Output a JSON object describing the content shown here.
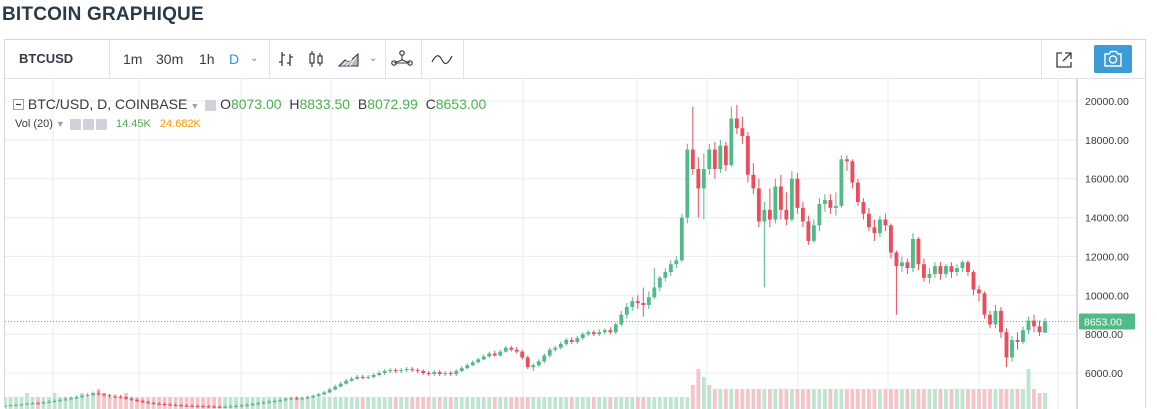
{
  "page": {
    "title": "BITCOIN GRAPHIQUE"
  },
  "toolbar": {
    "symbol": "BTCUSD",
    "intervals": [
      "1m",
      "30m",
      "1h",
      "D"
    ],
    "active_interval": "D",
    "icons": [
      "bar-type-icon",
      "candles-icon",
      "area-icon",
      "indicators-icon",
      "compare-icon",
      "fullscreen-icon",
      "camera-icon"
    ],
    "accent": "#2196f3",
    "camera_color": "#3d9bd6"
  },
  "legend": {
    "series": "BTC/USD, D, COINBASE",
    "o_label": "O",
    "o": "8073.00",
    "h_label": "H",
    "h": "8833.50",
    "l_label": "B",
    "l": "8072.99",
    "c_label": "C",
    "c": "8653.00",
    "vol_label": "Vol (20)",
    "vol_value": "14.45K",
    "vol_ma": "24.682K"
  },
  "chart_data": {
    "type": "candlestick",
    "ylim": [
      4600,
      20500
    ],
    "yticks": [
      "20000.00",
      "18000.00",
      "16000.00",
      "14000.00",
      "12000.00",
      "10000.00",
      "8000.00",
      "6000.00"
    ],
    "last_price_label": "8653.00",
    "last_price": 8653,
    "colors": {
      "up": "#53b987",
      "down": "#eb4d5c",
      "grid": "#e9ecf1"
    },
    "candles": [
      [
        4300,
        4320,
        4310,
        4350,
        4260
      ],
      [
        4320,
        4340,
        4330,
        4380,
        4290
      ],
      [
        4340,
        4360,
        4350,
        4400,
        4310
      ],
      [
        4360,
        4380,
        4370,
        4430,
        4330
      ],
      [
        4380,
        4420,
        4400,
        4480,
        4350
      ],
      [
        4420,
        4440,
        4430,
        4500,
        4390
      ],
      [
        4440,
        4430,
        4450,
        4530,
        4410
      ],
      [
        4430,
        4480,
        4460,
        4560,
        4400
      ],
      [
        4480,
        4520,
        4500,
        4600,
        4450
      ],
      [
        4520,
        4560,
        4540,
        4650,
        4480
      ],
      [
        4560,
        4600,
        4580,
        4700,
        4520
      ],
      [
        4600,
        4650,
        4620,
        4760,
        4560
      ],
      [
        4650,
        4700,
        4680,
        4800,
        4600
      ],
      [
        4700,
        4760,
        4730,
        4850,
        4650
      ],
      [
        4760,
        4820,
        4800,
        4900,
        4700
      ],
      [
        4820,
        4880,
        4850,
        4960,
        4760
      ],
      [
        4880,
        4950,
        4920,
        5050,
        4820
      ],
      [
        4950,
        4900,
        4930,
        5080,
        4850
      ],
      [
        4900,
        4850,
        4870,
        4980,
        4780
      ],
      [
        4850,
        4800,
        4820,
        4930,
        4720
      ],
      [
        4800,
        4780,
        4790,
        4900,
        4700
      ],
      [
        4780,
        4750,
        4760,
        4870,
        4680
      ],
      [
        4750,
        4680,
        4700,
        4820,
        4620
      ],
      [
        4680,
        4620,
        4650,
        4760,
        4560
      ],
      [
        4620,
        4560,
        4590,
        4700,
        4500
      ],
      [
        4560,
        4500,
        4530,
        4640,
        4440
      ],
      [
        4500,
        4460,
        4480,
        4580,
        4400
      ],
      [
        4460,
        4420,
        4440,
        4540,
        4360
      ],
      [
        4420,
        4400,
        4410,
        4500,
        4340
      ],
      [
        4400,
        4380,
        4390,
        4480,
        4320
      ],
      [
        4380,
        4360,
        4370,
        4460,
        4300
      ],
      [
        4360,
        4340,
        4350,
        4440,
        4280
      ],
      [
        4340,
        4320,
        4330,
        4420,
        4260
      ],
      [
        4320,
        4310,
        4315,
        4400,
        4250
      ],
      [
        4310,
        4300,
        4305,
        4390,
        4240
      ],
      [
        4300,
        4290,
        4295,
        4380,
        4230
      ],
      [
        4290,
        4280,
        4285,
        4370,
        4220
      ],
      [
        4280,
        4270,
        4275,
        4360,
        4210
      ],
      [
        4270,
        4260,
        4265,
        4350,
        4200
      ],
      [
        4260,
        4250,
        4255,
        4340,
        4190
      ],
      [
        4250,
        4260,
        4255,
        4340,
        4190
      ],
      [
        4260,
        4280,
        4270,
        4360,
        4200
      ],
      [
        4280,
        4300,
        4290,
        4380,
        4220
      ],
      [
        4300,
        4330,
        4315,
        4410,
        4240
      ],
      [
        4330,
        4360,
        4345,
        4440,
        4270
      ],
      [
        4360,
        4400,
        4380,
        4480,
        4300
      ],
      [
        4400,
        4440,
        4420,
        4520,
        4340
      ],
      [
        4440,
        4480,
        4460,
        4560,
        4380
      ],
      [
        4480,
        4520,
        4500,
        4600,
        4420
      ],
      [
        4520,
        4560,
        4540,
        4640,
        4460
      ],
      [
        4560,
        4600,
        4580,
        4680,
        4500
      ],
      [
        4600,
        4650,
        4620,
        4730,
        4540
      ],
      [
        4650,
        4700,
        4680,
        4780,
        4590
      ],
      [
        4700,
        4650,
        4680,
        4790,
        4600
      ],
      [
        4650,
        4700,
        4670,
        4780,
        4590
      ],
      [
        4700,
        4760,
        4730,
        4840,
        4640
      ],
      [
        4760,
        4820,
        4790,
        4900,
        4700
      ],
      [
        4820,
        4900,
        4860,
        4980,
        4760
      ],
      [
        4900,
        5000,
        4950,
        5080,
        4850
      ],
      [
        5000,
        5150,
        5080,
        5250,
        4950
      ],
      [
        5150,
        5300,
        5230,
        5400,
        5100
      ],
      [
        5300,
        5450,
        5380,
        5550,
        5250
      ],
      [
        5450,
        5600,
        5530,
        5700,
        5400
      ],
      [
        5600,
        5700,
        5650,
        5800,
        5550
      ],
      [
        5700,
        5800,
        5750,
        5900,
        5650
      ],
      [
        5800,
        5750,
        5780,
        5900,
        5680
      ],
      [
        5750,
        5800,
        5780,
        5900,
        5680
      ],
      [
        5800,
        5900,
        5850,
        6000,
        5720
      ],
      [
        5900,
        6000,
        5950,
        6100,
        5820
      ],
      [
        6000,
        6100,
        6050,
        6200,
        5900
      ],
      [
        6100,
        6150,
        6130,
        6250,
        6000
      ],
      [
        6150,
        6100,
        6130,
        6250,
        6000
      ],
      [
        6100,
        6150,
        6120,
        6250,
        6000
      ],
      [
        6150,
        6200,
        6180,
        6300,
        6050
      ],
      [
        6200,
        6150,
        6180,
        6300,
        6050
      ],
      [
        6150,
        6100,
        6120,
        6250,
        5980
      ],
      [
        6100,
        6000,
        6050,
        6200,
        5900
      ],
      [
        6000,
        5950,
        5980,
        6100,
        5850
      ],
      [
        5950,
        6050,
        6000,
        6150,
        5850
      ],
      [
        6050,
        5950,
        6000,
        6150,
        5850
      ],
      [
        5950,
        6000,
        5980,
        6100,
        5850
      ],
      [
        6000,
        5950,
        5970,
        6100,
        5850
      ],
      [
        5950,
        6100,
        6020,
        6200,
        5850
      ],
      [
        6100,
        6250,
        6180,
        6350,
        6050
      ],
      [
        6250,
        6400,
        6320,
        6500,
        6200
      ],
      [
        6400,
        6550,
        6480,
        6650,
        6350
      ],
      [
        6550,
        6700,
        6620,
        6800,
        6500
      ],
      [
        6700,
        6850,
        6780,
        6950,
        6650
      ],
      [
        6850,
        7000,
        6920,
        7100,
        6800
      ],
      [
        7000,
        6900,
        6950,
        7150,
        6850
      ],
      [
        6900,
        7100,
        7000,
        7200,
        6850
      ],
      [
        7100,
        7300,
        7200,
        7400,
        7050
      ],
      [
        7300,
        7200,
        7250,
        7400,
        7100
      ],
      [
        7200,
        7100,
        7150,
        7350,
        7000
      ],
      [
        7100,
        6800,
        6950,
        7200,
        6700
      ],
      [
        6800,
        6300,
        6550,
        6900,
        6200
      ],
      [
        6300,
        6400,
        6350,
        6500,
        6100
      ],
      [
        6400,
        6600,
        6500,
        6700,
        6300
      ],
      [
        6600,
        6900,
        6750,
        7000,
        6500
      ],
      [
        6900,
        7200,
        7050,
        7300,
        6800
      ],
      [
        7200,
        7300,
        7250,
        7400,
        7100
      ],
      [
        7300,
        7500,
        7400,
        7600,
        7200
      ],
      [
        7500,
        7700,
        7600,
        7800,
        7400
      ],
      [
        7700,
        7600,
        7650,
        7850,
        7500
      ],
      [
        7600,
        7800,
        7700,
        7900,
        7500
      ],
      [
        7800,
        8000,
        7900,
        8100,
        7700
      ],
      [
        8000,
        8100,
        8050,
        8200,
        7900
      ],
      [
        8100,
        8000,
        8050,
        8200,
        7900
      ],
      [
        8000,
        8100,
        8050,
        8250,
        7900
      ],
      [
        8100,
        8200,
        8150,
        8300,
        8000
      ],
      [
        8200,
        8100,
        8150,
        8350,
        8000
      ],
      [
        8100,
        8500,
        8300,
        8600,
        8000
      ],
      [
        8500,
        9000,
        8750,
        9200,
        8400
      ],
      [
        9000,
        9400,
        9200,
        9600,
        8800
      ],
      [
        9400,
        9700,
        9550,
        9900,
        9200
      ],
      [
        9700,
        9600,
        9650,
        10000,
        9300
      ],
      [
        9600,
        9500,
        9550,
        10400,
        8900
      ],
      [
        9500,
        9900,
        9700,
        10200,
        9300
      ],
      [
        9900,
        10400,
        10150,
        11400,
        9800
      ],
      [
        10400,
        10900,
        10650,
        11000,
        10200
      ],
      [
        10900,
        11200,
        11050,
        11400,
        10700
      ],
      [
        11200,
        11600,
        11400,
        11800,
        11000
      ],
      [
        11600,
        11800,
        11700,
        12000,
        11400
      ],
      [
        11800,
        14000,
        12900,
        14200,
        11700
      ],
      [
        14000,
        17500,
        15800,
        17800,
        13700
      ],
      [
        17500,
        16500,
        17000,
        19700,
        16200
      ],
      [
        16500,
        15500,
        16000,
        17100,
        14000
      ],
      [
        15500,
        16500,
        16000,
        17300,
        13900
      ],
      [
        16500,
        17500,
        17000,
        17800,
        16200
      ],
      [
        17500,
        16500,
        17000,
        17900,
        16000
      ],
      [
        16500,
        17700,
        17100,
        18000,
        16300
      ],
      [
        17700,
        16700,
        17200,
        17900,
        16400
      ],
      [
        16700,
        19100,
        17900,
        19700,
        16600
      ],
      [
        19100,
        18600,
        18800,
        19800,
        18300
      ],
      [
        18600,
        18200,
        18400,
        19200,
        17800
      ],
      [
        18200,
        16200,
        17200,
        18400,
        15800
      ],
      [
        16200,
        15500,
        15800,
        16800,
        15200
      ],
      [
        15500,
        13800,
        14600,
        16000,
        13500
      ],
      [
        13800,
        14400,
        14100,
        14800,
        10400
      ],
      [
        14400,
        13900,
        14150,
        15500,
        13500
      ],
      [
        13900,
        15600,
        14700,
        16000,
        13700
      ],
      [
        15600,
        14400,
        15000,
        16200,
        13900
      ],
      [
        14400,
        13900,
        14100,
        15300,
        13600
      ],
      [
        13900,
        16000,
        14900,
        16400,
        13800
      ],
      [
        16000,
        14500,
        15200,
        16300,
        14200
      ],
      [
        14500,
        13800,
        14100,
        14800,
        13500
      ],
      [
        13800,
        12800,
        13300,
        14100,
        12600
      ],
      [
        12800,
        13600,
        13200,
        13900,
        12700
      ],
      [
        13600,
        14700,
        14100,
        15000,
        13300
      ],
      [
        14700,
        14900,
        14800,
        15200,
        14300
      ],
      [
        14900,
        14500,
        14700,
        15200,
        14200
      ],
      [
        14500,
        14600,
        14550,
        15300,
        14100
      ],
      [
        14600,
        17000,
        15800,
        17200,
        14500
      ],
      [
        17000,
        16900,
        16950,
        17200,
        16400
      ],
      [
        16900,
        15800,
        16300,
        17000,
        15500
      ],
      [
        15800,
        14800,
        15300,
        16000,
        14600
      ],
      [
        14800,
        14200,
        14500,
        15000,
        13900
      ],
      [
        14200,
        13500,
        13800,
        14500,
        13300
      ],
      [
        13500,
        13200,
        13350,
        13900,
        12800
      ],
      [
        13200,
        13900,
        13500,
        14100,
        13000
      ],
      [
        13900,
        13600,
        13750,
        14200,
        13300
      ],
      [
        13600,
        12200,
        12900,
        13700,
        11900
      ],
      [
        12200,
        11500,
        11800,
        12300,
        9000
      ],
      [
        11500,
        11700,
        11600,
        12000,
        11200
      ],
      [
        11700,
        11400,
        11550,
        11900,
        11100
      ],
      [
        11400,
        12900,
        12100,
        13200,
        11200
      ],
      [
        12900,
        11600,
        12200,
        13000,
        11300
      ],
      [
        11600,
        10900,
        11200,
        11900,
        10700
      ],
      [
        10900,
        11100,
        11000,
        11400,
        10600
      ],
      [
        11100,
        11500,
        11300,
        11700,
        10900
      ],
      [
        11500,
        11100,
        11300,
        11700,
        10800
      ],
      [
        11100,
        11500,
        11300,
        11600,
        10900
      ],
      [
        11500,
        11200,
        11350,
        11700,
        10900
      ],
      [
        11200,
        11400,
        11300,
        11600,
        11000
      ],
      [
        11400,
        11700,
        11550,
        11800,
        11200
      ],
      [
        11700,
        11200,
        11450,
        11800,
        11000
      ],
      [
        11200,
        10300,
        10750,
        11300,
        10000
      ],
      [
        10300,
        10100,
        10200,
        10500,
        9700
      ],
      [
        10100,
        9000,
        9500,
        10200,
        8800
      ],
      [
        9000,
        8500,
        8700,
        9200,
        8300
      ],
      [
        8500,
        9200,
        8800,
        9500,
        8300
      ],
      [
        9200,
        8100,
        8650,
        9400,
        7800
      ],
      [
        8100,
        6800,
        7400,
        8300,
        6300
      ],
      [
        6800,
        7700,
        7200,
        7900,
        6600
      ],
      [
        7700,
        7600,
        7650,
        8100,
        7200
      ],
      [
        7600,
        8200,
        7900,
        8400,
        7500
      ],
      [
        8200,
        8700,
        8450,
        8900,
        8000
      ],
      [
        8700,
        8400,
        8550,
        9000,
        8100
      ],
      [
        8400,
        8100,
        8250,
        8700,
        7900
      ],
      [
        8073,
        8653,
        8363,
        8834,
        8073
      ]
    ],
    "volumes": [
      0.3,
      0.3,
      0.3,
      0.3,
      0.4,
      0.3,
      0.3,
      0.3,
      0.3,
      0.4,
      0.3,
      0.3,
      0.3,
      0.3,
      0.4,
      0.3,
      0.4,
      0.5,
      0.4,
      0.3,
      0.3,
      0.3,
      0.4,
      0.3,
      0.3,
      0.3,
      0.3,
      0.3,
      0.3,
      0.3,
      0.3,
      0.3,
      0.3,
      0.3,
      0.3,
      0.3,
      0.3,
      0.3,
      0.3,
      0.3,
      0.3,
      0.3,
      0.3,
      0.3,
      0.3,
      0.3,
      0.3,
      0.3,
      0.3,
      0.3,
      0.3,
      0.3,
      0.3,
      0.3,
      0.3,
      0.3,
      0.3,
      0.3,
      0.3,
      0.3,
      0.3,
      0.3,
      0.3,
      0.3,
      0.3,
      0.3,
      0.3,
      0.3,
      0.3,
      0.3,
      0.3,
      0.3,
      0.3,
      0.3,
      0.3,
      0.3,
      0.3,
      0.3,
      0.3,
      0.3,
      0.3,
      0.3,
      0.3,
      0.3,
      0.3,
      0.3,
      0.3,
      0.3,
      0.3,
      0.3,
      0.3,
      0.3,
      0.3,
      0.3,
      0.3,
      0.3,
      0.3,
      0.3,
      0.3,
      0.3,
      0.3,
      0.3,
      0.3,
      0.3,
      0.3,
      0.3,
      0.3,
      0.3,
      0.3,
      0.3,
      0.3,
      0.3,
      0.3,
      0.3,
      0.3,
      0.3,
      0.3,
      0.3,
      0.3,
      0.3,
      0.3,
      0.3,
      0.3,
      0.3,
      0.3,
      0.6,
      1.0,
      0.8,
      0.6,
      0.5,
      0.5,
      0.5,
      0.5,
      0.5,
      0.5,
      0.5,
      0.5,
      0.5,
      0.5,
      0.5,
      0.5,
      0.5,
      0.5,
      0.5,
      0.5,
      0.5,
      0.5,
      0.5,
      0.5,
      0.5,
      0.5,
      0.5,
      0.5,
      0.5,
      0.5,
      0.5,
      0.5,
      0.5,
      0.5,
      0.5,
      0.5,
      0.5,
      0.5,
      0.5,
      0.5,
      0.5,
      0.5,
      0.5,
      0.5,
      0.5,
      0.5,
      0.5,
      0.5,
      0.5,
      0.5,
      0.5,
      0.5,
      0.5,
      0.5,
      0.5,
      0.5,
      0.5,
      0.5,
      0.5,
      0.5,
      0.5,
      1.0,
      0.5,
      0.4,
      0.4,
      0.4,
      0.4,
      0.4,
      0.4
    ]
  }
}
